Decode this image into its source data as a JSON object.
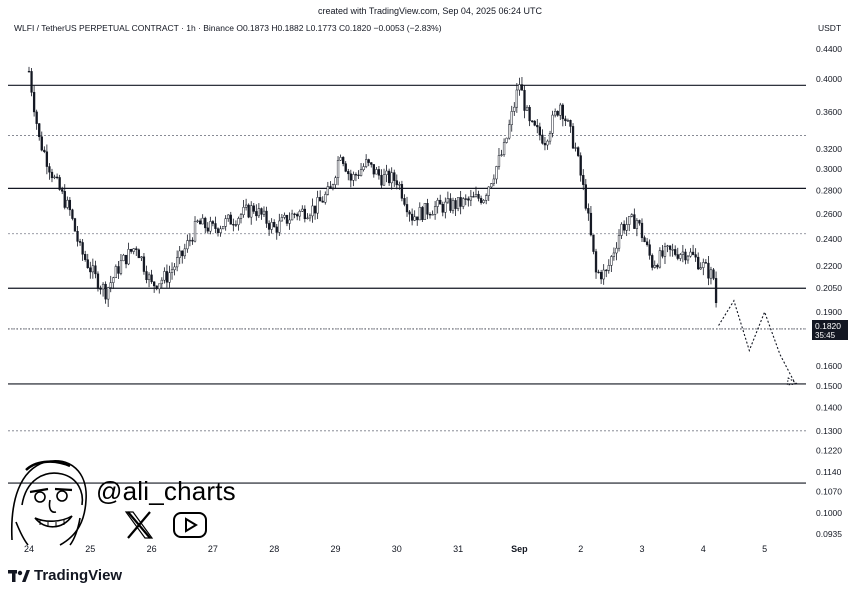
{
  "header": {
    "credit": "created with TradingView.com, Sep 04, 2025 06:24 UTC",
    "symbol": "WLFI / TetherUS PERPETUAL CONTRACT · 1h · Binance",
    "ohlc_o": "O0.1873",
    "ohlc_h": "H0.1882",
    "ohlc_l": "L0.1773",
    "ohlc_c": "C0.1820",
    "change": "−0.0053 (−2.83%)",
    "currency": "USDT"
  },
  "price_badge": {
    "price": "0.1820",
    "countdown": "35:45"
  },
  "watermark": {
    "handle": "@ali_charts",
    "icons": [
      "x-logo-icon",
      "youtube-icon"
    ]
  },
  "brand": {
    "name": "TradingView"
  },
  "chart_data": {
    "type": "candlestick",
    "y_scale": "log",
    "y_ticks": [
      "0.4400",
      "0.4000",
      "0.3600",
      "0.3200",
      "0.3000",
      "0.2800",
      "0.2600",
      "0.2400",
      "0.2200",
      "0.2050",
      "0.1900",
      "0.1600",
      "0.1500",
      "0.1400",
      "0.1300",
      "0.1220",
      "0.1140",
      "0.1070",
      "0.1000",
      "0.0935"
    ],
    "x_ticks": [
      "24",
      "25",
      "26",
      "27",
      "28",
      "29",
      "30",
      "31",
      "Sep",
      "2",
      "3",
      "4",
      "5"
    ],
    "x_start": "2025-08-24",
    "solid_levels": [
      0.392,
      0.282,
      0.205,
      0.151,
      0.11
    ],
    "dashed_levels": [
      0.334,
      0.244,
      0.18,
      0.13
    ],
    "price_path": [
      [
        "2025-08-24T00:00",
        0.41
      ],
      [
        "2025-08-24T04:00",
        0.33
      ],
      [
        "2025-08-24T10:00",
        0.29
      ],
      [
        "2025-08-24T16:00",
        0.262
      ],
      [
        "2025-08-24T20:00",
        0.232
      ],
      [
        "2025-08-25T02:00",
        0.212
      ],
      [
        "2025-08-25T06:00",
        0.203
      ],
      [
        "2025-08-25T12:00",
        0.222
      ],
      [
        "2025-08-25T18:00",
        0.235
      ],
      [
        "2025-08-26T00:00",
        0.207
      ],
      [
        "2025-08-26T06:00",
        0.213
      ],
      [
        "2025-08-26T12:00",
        0.228
      ],
      [
        "2025-08-26T18:00",
        0.252
      ],
      [
        "2025-08-27T00:00",
        0.248
      ],
      [
        "2025-08-27T08:00",
        0.256
      ],
      [
        "2025-08-27T16:00",
        0.265
      ],
      [
        "2025-08-28T00:00",
        0.248
      ],
      [
        "2025-08-28T08:00",
        0.26
      ],
      [
        "2025-08-28T16:00",
        0.265
      ],
      [
        "2025-08-28T22:00",
        0.28
      ],
      [
        "2025-08-29T02:00",
        0.318
      ],
      [
        "2025-08-29T06:00",
        0.29
      ],
      [
        "2025-08-29T12:00",
        0.305
      ],
      [
        "2025-08-29T18:00",
        0.292
      ],
      [
        "2025-08-30T00:00",
        0.29
      ],
      [
        "2025-08-30T06:00",
        0.258
      ],
      [
        "2025-08-30T14:00",
        0.265
      ],
      [
        "2025-08-31T00:00",
        0.268
      ],
      [
        "2025-08-31T10:00",
        0.275
      ],
      [
        "2025-08-31T18:00",
        0.32
      ],
      [
        "2025-09-01T00:00",
        0.395
      ],
      [
        "2025-09-01T04:00",
        0.345
      ],
      [
        "2025-09-01T10:00",
        0.33
      ],
      [
        "2025-09-01T16:00",
        0.37
      ],
      [
        "2025-09-01T22:00",
        0.32
      ],
      [
        "2025-09-02T02:00",
        0.27
      ],
      [
        "2025-09-02T06:00",
        0.215
      ],
      [
        "2025-09-02T10:00",
        0.215
      ],
      [
        "2025-09-02T16:00",
        0.25
      ],
      [
        "2025-09-02T22:00",
        0.255
      ],
      [
        "2025-09-03T04:00",
        0.222
      ],
      [
        "2025-09-03T10:00",
        0.23
      ],
      [
        "2025-09-03T18:00",
        0.23
      ],
      [
        "2025-09-04T00:00",
        0.22
      ],
      [
        "2025-09-04T04:00",
        0.212
      ],
      [
        "2025-09-04T06:00",
        0.182
      ]
    ],
    "projection_path": [
      [
        "2025-09-04T06:00",
        0.182
      ],
      [
        "2025-09-04T12:00",
        0.197
      ],
      [
        "2025-09-04T18:00",
        0.168
      ],
      [
        "2025-09-05T00:00",
        0.19
      ],
      [
        "2025-09-05T06:00",
        0.166
      ],
      [
        "2025-09-05T12:00",
        0.151
      ]
    ],
    "colors": {
      "candle": "#131722",
      "level": "#131722",
      "badge_bg": "#131722",
      "badge_text": "#ffffff"
    }
  }
}
